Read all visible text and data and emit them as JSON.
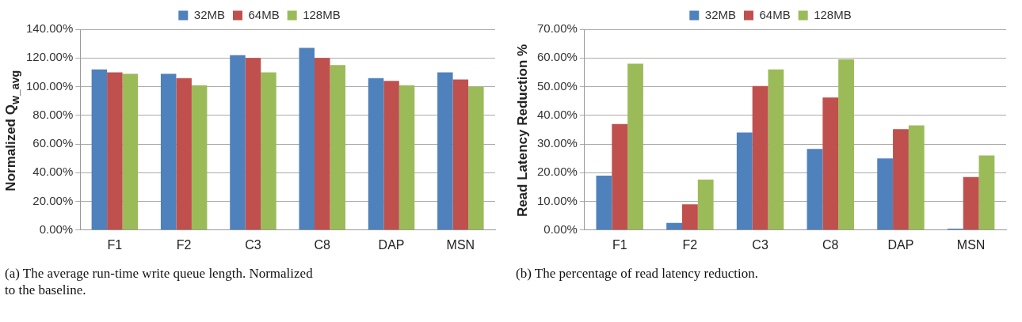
{
  "chart_data": [
    {
      "type": "bar",
      "categories": [
        "F1",
        "F2",
        "C3",
        "C8",
        "DAP",
        "MSN"
      ],
      "ylabel": "Normalized Q$_{w_avg}$",
      "series": [
        {
          "name": "32MB",
          "color": "#4f81bd",
          "values": [
            112,
            109,
            122,
            127,
            106,
            110
          ]
        },
        {
          "name": "64MB",
          "color": "#c0504d",
          "values": [
            110,
            106,
            120,
            120,
            104,
            105
          ]
        },
        {
          "name": "128MB",
          "color": "#9bbb59",
          "values": [
            109,
            101,
            110,
            115,
            101,
            100
          ]
        }
      ],
      "ylim": [
        0,
        140
      ],
      "yticks": [
        {
          "value": 0,
          "label": "0.00%"
        },
        {
          "value": 20,
          "label": "20.00%"
        },
        {
          "value": 40,
          "label": "40.00%"
        },
        {
          "value": 60,
          "label": "60.00%"
        },
        {
          "value": 80,
          "label": "80.00%"
        },
        {
          "value": 100,
          "label": "100.00%"
        },
        {
          "value": 120,
          "label": "120.00%"
        },
        {
          "value": 140,
          "label": "140.00%"
        }
      ],
      "grid": "y",
      "legend": "top",
      "annotations": [
        "(a) The average run-time write queue length. Normalized to the baseline."
      ]
    },
    {
      "type": "bar",
      "categories": [
        "F1",
        "F2",
        "C3",
        "C8",
        "DAP",
        "MSN"
      ],
      "ylabel": "Read Latency Reduction %",
      "series": [
        {
          "name": "32MB",
          "color": "#4f81bd",
          "values": [
            19,
            2.5,
            34,
            28.3,
            25,
            0.5
          ]
        },
        {
          "name": "64MB",
          "color": "#c0504d",
          "values": [
            37,
            9,
            50.2,
            46.2,
            35.2,
            18.5
          ]
        },
        {
          "name": "128MB",
          "color": "#9bbb59",
          "values": [
            58,
            17.6,
            56,
            59.5,
            36.5,
            26
          ]
        }
      ],
      "ylim": [
        0,
        70
      ],
      "yticks": [
        {
          "value": 0,
          "label": "0.00%"
        },
        {
          "value": 10,
          "label": "10.00%"
        },
        {
          "value": 20,
          "label": "20.00%"
        },
        {
          "value": 30,
          "label": "30.00%"
        },
        {
          "value": 40,
          "label": "40.00%"
        },
        {
          "value": 50,
          "label": "50.00%"
        },
        {
          "value": 60,
          "label": "60.00%"
        },
        {
          "value": 70,
          "label": "70.00%"
        }
      ],
      "grid": "y",
      "legend": "top",
      "annotations": [
        "(b) The percentage of read latency reduction."
      ]
    }
  ]
}
